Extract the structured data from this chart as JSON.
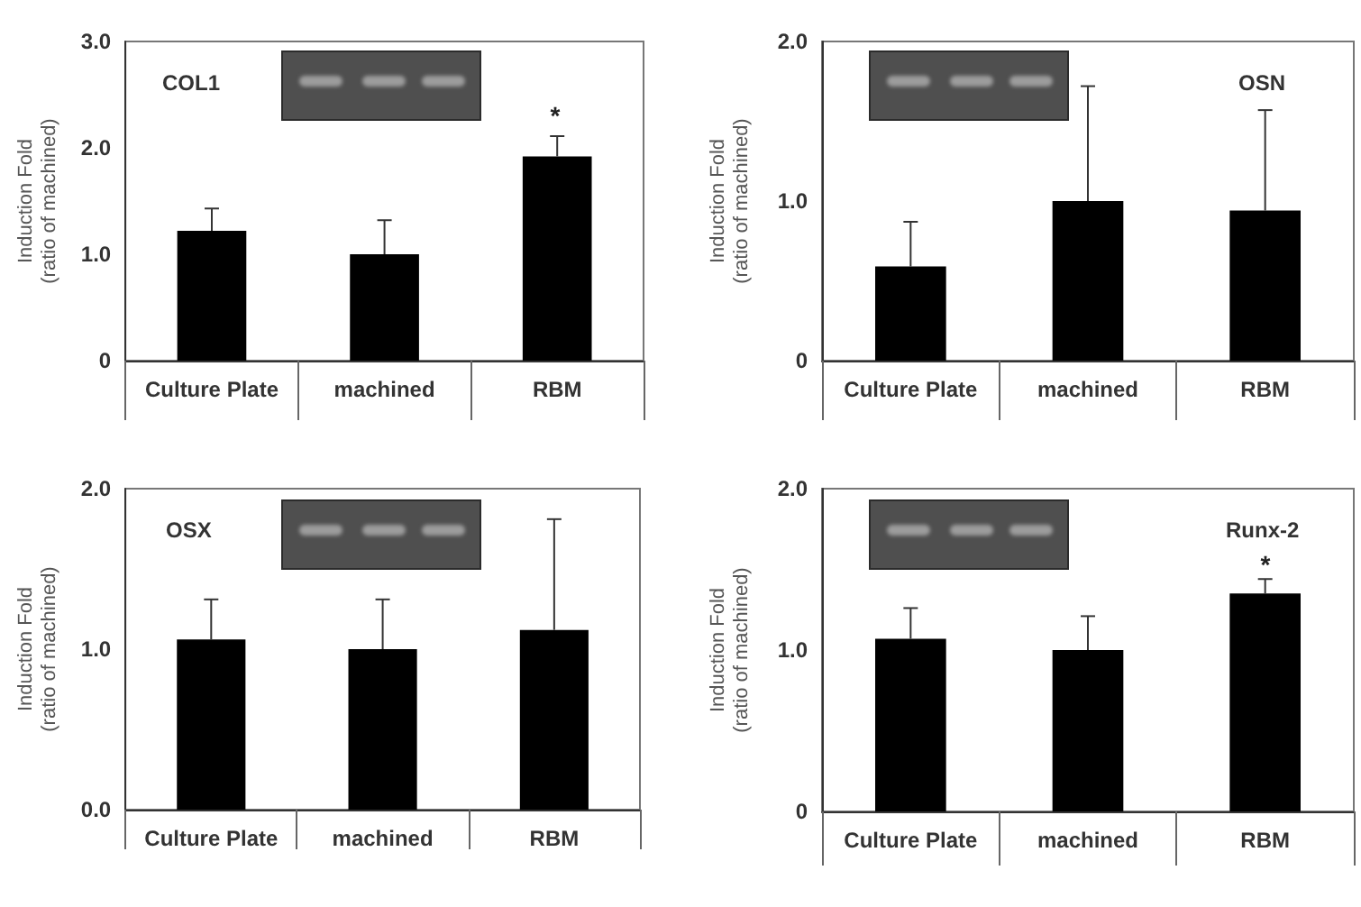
{
  "chart_data": [
    {
      "type": "bar",
      "title": "COL1",
      "ylabel": "Induction Fold\n(ratio of machined)",
      "categories": [
        "Culture Plate",
        "machined",
        "RBM"
      ],
      "values": [
        1.22,
        1.0,
        1.92
      ],
      "errors": [
        [
          1.22,
          1.43
        ],
        [
          1.0,
          1.32
        ],
        [
          1.92,
          2.11
        ]
      ],
      "color": "#000000",
      "ylim": [
        0,
        3
      ],
      "yticks": [
        {
          "value": 0,
          "label": "0"
        },
        {
          "value": 1,
          "label": "1.0"
        },
        {
          "value": 2,
          "label": "2.0"
        },
        {
          "value": 3,
          "label": "3.0"
        }
      ],
      "annotations": [
        "*"
      ]
    },
    {
      "type": "bar",
      "title": "OSN",
      "ylabel": "Induction Fold\n(ratio of machined)",
      "categories": [
        "Culture Plate",
        "machined",
        "RBM"
      ],
      "values": [
        0.59,
        1.0,
        0.94
      ],
      "errors": [
        [
          0.59,
          0.87
        ],
        [
          1.0,
          1.72
        ],
        [
          0.94,
          1.57
        ]
      ],
      "color": "#000000",
      "ylim": [
        0,
        2
      ],
      "yticks": [
        {
          "value": 0,
          "label": "0"
        },
        {
          "value": 1,
          "label": "1.0"
        },
        {
          "value": 2,
          "label": "2.0"
        }
      ]
    },
    {
      "type": "bar",
      "title": "OSX",
      "ylabel": "Induction Fold\n(ratio of machined)",
      "categories": [
        "Culture Plate",
        "machined",
        "RBM"
      ],
      "values": [
        1.06,
        1.0,
        1.12
      ],
      "errors": [
        [
          1.06,
          1.31
        ],
        [
          1.0,
          1.31
        ],
        [
          1.12,
          1.81
        ]
      ],
      "color": "#000000",
      "ylim": [
        0,
        2
      ],
      "yticks": [
        {
          "value": 0,
          "label": "0.0"
        },
        {
          "value": 1,
          "label": "1.0"
        },
        {
          "value": 2,
          "label": "2.0"
        }
      ]
    },
    {
      "type": "bar",
      "title": "Runx-2",
      "ylabel": "Induction Fold\n(ratio of machined)",
      "categories": [
        "Culture Plate",
        "machined",
        "RBM"
      ],
      "values": [
        1.07,
        1.0,
        1.35
      ],
      "errors": [
        [
          1.07,
          1.26
        ],
        [
          1.0,
          1.21
        ],
        [
          1.35,
          1.44
        ]
      ],
      "color": "#000000",
      "ylim": [
        0,
        2
      ],
      "yticks": [
        {
          "value": 0,
          "label": "0"
        },
        {
          "value": 1,
          "label": "1.0"
        },
        {
          "value": 2,
          "label": "2.0"
        }
      ],
      "annotations": [
        "*"
      ]
    }
  ]
}
